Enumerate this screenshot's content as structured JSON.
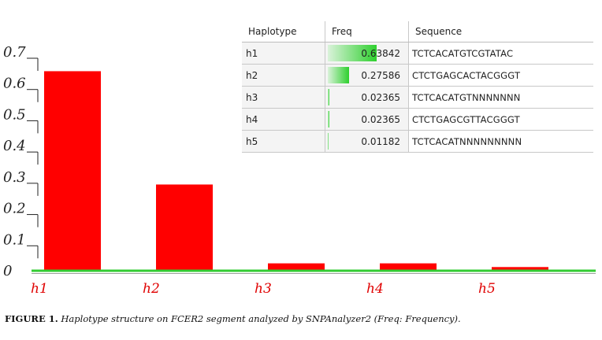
{
  "chart_data": {
    "type": "bar",
    "categories": [
      "h1",
      "h2",
      "h3",
      "h4",
      "h5"
    ],
    "values": [
      0.63842,
      0.27586,
      0.02365,
      0.02365,
      0.01182
    ],
    "yticks": [
      "0.7",
      "0.6",
      "0.5",
      "0.4",
      "0.3",
      "0.2",
      "0.1",
      "0"
    ],
    "ylim": [
      0,
      0.7
    ],
    "grid": false,
    "bar_color": "#ff0000",
    "baseline_color": "#33cc33"
  },
  "table": {
    "headers": [
      "Haplotype",
      "Freq",
      "Sequence"
    ],
    "rows": [
      {
        "hap": "h1",
        "freq": 0.63842,
        "freq_text": "0.63842",
        "seq": "TCTCACATGTCGTATAC"
      },
      {
        "hap": "h2",
        "freq": 0.27586,
        "freq_text": "0.27586",
        "seq": "CTCTGAGCACTACGGGT"
      },
      {
        "hap": "h3",
        "freq": 0.02365,
        "freq_text": "0.02365",
        "seq": "TCTCACATGTNNNNNNN"
      },
      {
        "hap": "h4",
        "freq": 0.02365,
        "freq_text": "0.02365",
        "seq": "CTCTGAGCGTTACGGGT"
      },
      {
        "hap": "h5",
        "freq": 0.01182,
        "freq_text": "0.01182",
        "seq": "TCTCACATNNNNNNNNN"
      }
    ]
  },
  "caption": {
    "label": "FIGURE 1.",
    "text": "Haplotype structure on FCER2 segment analyzed by SNPAnalyzer2 (Freq: Frequency)."
  }
}
